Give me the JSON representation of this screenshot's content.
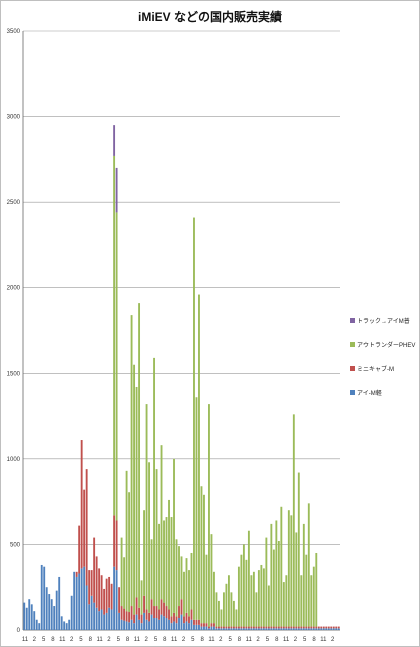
{
  "chart_data": {
    "type": "bar",
    "stacked": true,
    "title": "iMiEV などの国内販売実績",
    "xlabel": "",
    "ylabel": "",
    "ylim": [
      0,
      3500
    ],
    "yticks": [
      0,
      500,
      1000,
      1500,
      2000,
      2500,
      3000,
      3500
    ],
    "grid": true,
    "legend_position": "right",
    "x_tick_labels": [
      "11",
      "2",
      "5",
      "8",
      "11",
      "2",
      "5",
      "8",
      "11",
      "2",
      "5",
      "8",
      "11",
      "2",
      "5",
      "8",
      "11",
      "2",
      "5",
      "8",
      "11",
      "2",
      "5",
      "8",
      "11",
      "2",
      "5",
      "8",
      "11",
      "2",
      "5",
      "8",
      "11",
      "2"
    ],
    "series": [
      {
        "name": "アイ-M軽",
        "color": "#4f81bd",
        "values": [
          160,
          130,
          180,
          150,
          110,
          60,
          40,
          380,
          370,
          250,
          210,
          180,
          140,
          230,
          310,
          80,
          50,
          40,
          60,
          200,
          340,
          310,
          330,
          360,
          370,
          260,
          150,
          200,
          160,
          130,
          110,
          120,
          90,
          100,
          130,
          120,
          370,
          350,
          100,
          60,
          55,
          50,
          45,
          60,
          40,
          90,
          60,
          40,
          100,
          60,
          50,
          90,
          70,
          70,
          60,
          90,
          80,
          70,
          60,
          40,
          50,
          40,
          70,
          90,
          40,
          50,
          40,
          60,
          30,
          30,
          30,
          20,
          20,
          20,
          10,
          20,
          20,
          10,
          10,
          10,
          10,
          10,
          10,
          10,
          10,
          10,
          10,
          10,
          10,
          10,
          10,
          10,
          10,
          10,
          10,
          10,
          10,
          10,
          10,
          10,
          10,
          10,
          10,
          10,
          10,
          10,
          10,
          10,
          10,
          10,
          10,
          10,
          10,
          10,
          10,
          10,
          10,
          10,
          10,
          10,
          10,
          10,
          10,
          10,
          10,
          10,
          10
        ]
      },
      {
        "name": "ミニキャブ-M",
        "color": "#c0504d",
        "values": [
          0,
          0,
          0,
          0,
          0,
          0,
          0,
          0,
          0,
          0,
          0,
          0,
          0,
          0,
          0,
          0,
          0,
          0,
          0,
          0,
          0,
          30,
          280,
          750,
          450,
          680,
          200,
          150,
          380,
          300,
          250,
          200,
          150,
          200,
          180,
          150,
          300,
          290,
          150,
          80,
          70,
          60,
          60,
          80,
          50,
          100,
          70,
          50,
          100,
          60,
          50,
          90,
          70,
          70,
          60,
          90,
          80,
          70,
          60,
          40,
          50,
          40,
          70,
          90,
          40,
          50,
          40,
          60,
          30,
          30,
          30,
          20,
          20,
          20,
          10,
          20,
          20,
          10,
          10,
          10,
          10,
          10,
          10,
          10,
          10,
          10,
          10,
          10,
          10,
          10,
          10,
          10,
          10,
          10,
          10,
          10,
          10,
          10,
          10,
          10,
          10,
          10,
          10,
          10,
          10,
          10,
          10,
          10,
          10,
          10,
          10,
          10,
          10,
          10,
          10,
          10,
          10,
          10,
          10,
          10,
          10,
          10,
          10,
          10,
          10,
          10,
          10
        ]
      },
      {
        "name": "アウトランダーPHEV",
        "color": "#9bbb59",
        "values": [
          0,
          0,
          0,
          0,
          0,
          0,
          0,
          0,
          0,
          0,
          0,
          0,
          0,
          0,
          0,
          0,
          0,
          0,
          0,
          0,
          0,
          0,
          0,
          0,
          0,
          0,
          0,
          0,
          0,
          0,
          0,
          0,
          0,
          0,
          0,
          0,
          2100,
          1800,
          0,
          400,
          300,
          820,
          700,
          1700,
          1460,
          1230,
          1780,
          200,
          500,
          1200,
          880,
          350,
          1450,
          800,
          500,
          900,
          480,
          520,
          640,
          580,
          900,
          450,
          350,
          250,
          260,
          320,
          270,
          330,
          2350,
          1300,
          1900,
          800,
          750,
          400,
          1300,
          520,
          300,
          200,
          150,
          100,
          200,
          250,
          300,
          200,
          150,
          100,
          350,
          420,
          480,
          390,
          560,
          300,
          320,
          200,
          330,
          360,
          340,
          520,
          240,
          600,
          450,
          620,
          500,
          700,
          260,
          300,
          680,
          650,
          1240,
          550,
          900,
          300,
          600,
          420,
          720,
          300,
          350,
          430,
          0,
          0,
          0,
          0,
          0,
          0,
          0,
          0,
          0
        ]
      },
      {
        "name": "トラック→アイM普",
        "color": "#8064a2",
        "values": [
          0,
          0,
          0,
          0,
          0,
          0,
          0,
          0,
          0,
          0,
          0,
          0,
          0,
          0,
          0,
          0,
          0,
          0,
          0,
          0,
          0,
          0,
          0,
          0,
          0,
          0,
          0,
          0,
          0,
          0,
          0,
          0,
          0,
          0,
          0,
          0,
          180,
          260,
          0,
          0,
          0,
          0,
          0,
          0,
          0,
          0,
          0,
          0,
          0,
          0,
          0,
          0,
          0,
          0,
          0,
          0,
          0,
          0,
          0,
          0,
          0,
          0,
          0,
          0,
          0,
          0,
          0,
          0,
          0,
          0,
          0,
          0,
          0,
          0,
          0,
          0,
          0,
          0,
          0,
          0,
          0,
          0,
          0,
          0,
          0,
          0,
          0,
          0,
          0,
          0,
          0,
          0,
          0,
          0,
          0,
          0,
          0,
          0,
          0,
          0,
          0,
          0,
          0,
          0,
          0,
          0,
          0,
          0,
          0,
          0,
          0,
          0,
          0,
          0,
          0,
          0,
          0,
          0,
          0,
          0,
          0,
          0,
          0,
          0,
          0,
          0,
          0,
          0
        ]
      }
    ]
  }
}
